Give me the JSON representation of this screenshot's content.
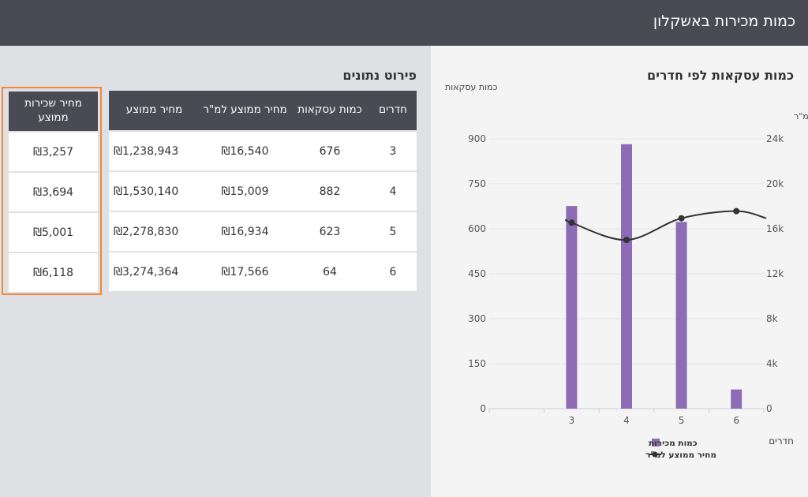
{
  "header": {
    "title": "כמות מכירות באשקלון"
  },
  "chart_section": {
    "title": "כמות עסקאות לפי חדרים"
  },
  "table_section": {
    "title": "פירוט נתונים"
  },
  "table": {
    "headers": {
      "rooms": "חדרים",
      "count": "כמות עסקאות",
      "sqm": "מחיר ממוצע למ\"ר",
      "price": "מחיר ממוצע"
    },
    "rows": [
      {
        "rooms": "3",
        "count": "676",
        "sqm": "₪16,540",
        "price": "₪1,238,943"
      },
      {
        "rooms": "4",
        "count": "882",
        "sqm": "₪15,009",
        "price": "₪1,530,140"
      },
      {
        "rooms": "5",
        "count": "623",
        "sqm": "₪16,934",
        "price": "₪2,278,830"
      },
      {
        "rooms": "6",
        "count": "64",
        "sqm": "₪17,566",
        "price": "₪3,274,364"
      }
    ]
  },
  "rent_table": {
    "header": "מחיר שכירות ממוצע",
    "rows": [
      "₪3,257",
      "₪3,694",
      "₪5,001",
      "₪6,118"
    ]
  },
  "colors": {
    "bar": "#8e6bb5",
    "line": "#333333",
    "highlight": "#f0883a",
    "header_bg": "#4a4a55"
  },
  "chart_data": {
    "type": "bar",
    "categories": [
      "3",
      "4",
      "5",
      "6"
    ],
    "series": [
      {
        "name": "כמות מכירות",
        "type": "bar",
        "axis": "left",
        "values": [
          676,
          882,
          623,
          64
        ]
      },
      {
        "name": "מחיר ממוצע למ\"ר",
        "type": "line",
        "axis": "right",
        "values": [
          16540,
          15009,
          16934,
          17566
        ]
      }
    ],
    "xlabel": "חדרים",
    "ylabel_left": "כמות עסקאות",
    "ylabel_right": "מחיר ממוצע למ\"ר",
    "ylim_left": [
      0,
      900
    ],
    "ylim_right": [
      0,
      24000
    ],
    "yticks_left": [
      "0",
      "150",
      "300",
      "450",
      "600",
      "750",
      "900"
    ],
    "yticks_right": [
      "0",
      "4k",
      "8k",
      "12k",
      "16k",
      "20k",
      "24k"
    ],
    "grid": true,
    "legend_position": "bottom"
  }
}
